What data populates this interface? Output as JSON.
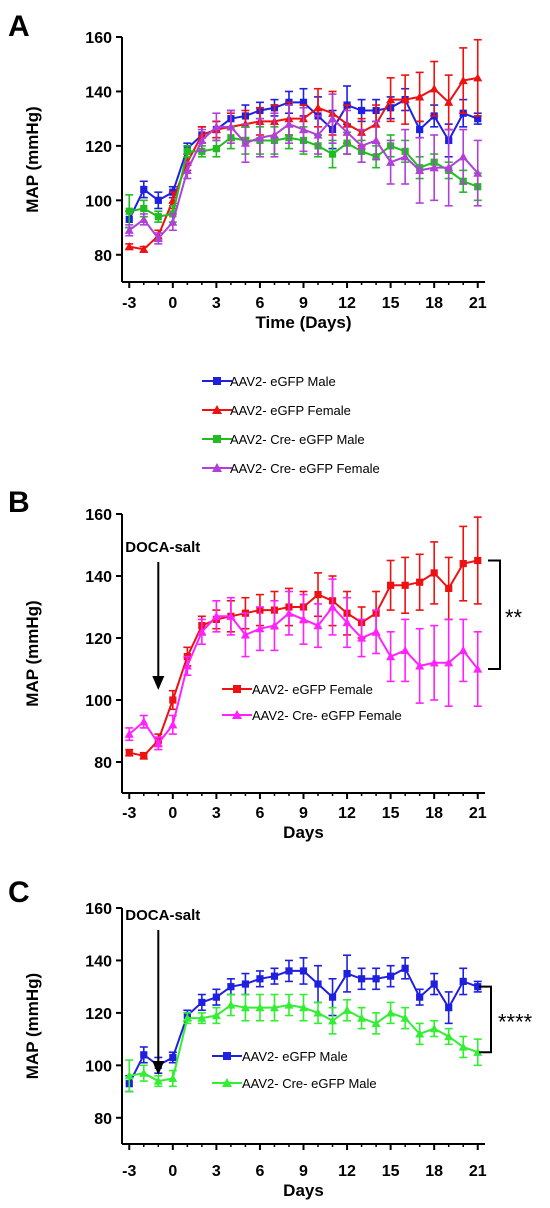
{
  "chart_data": [
    {
      "panel": "A",
      "type": "line",
      "xlabel": "Time (Days)",
      "ylabel": "MAP (mmHg)",
      "xlim": [
        -3.5,
        21.5
      ],
      "ylim": [
        70,
        160
      ],
      "xticks": [
        -3,
        0,
        3,
        6,
        9,
        12,
        15,
        18,
        21
      ],
      "yticks": [
        80,
        100,
        120,
        140,
        160
      ],
      "grid": false,
      "legend_position": "below",
      "series": [
        {
          "name": "AAV2- eGFP Male",
          "color": "#1f1fe0",
          "marker": "square",
          "x": [
            -3,
            -2,
            -1,
            0,
            1,
            2,
            3,
            4,
            5,
            6,
            7,
            8,
            9,
            10,
            11,
            12,
            13,
            14,
            15,
            16,
            17,
            18,
            19,
            20,
            21
          ],
          "y": [
            93,
            104,
            100,
            103,
            119,
            124,
            126,
            130,
            131,
            133,
            134,
            136,
            136,
            131,
            126,
            135,
            133,
            133,
            134,
            137,
            126,
            131,
            122,
            132,
            130
          ],
          "err": [
            3,
            3,
            3,
            2,
            2,
            3,
            3,
            3,
            4,
            3,
            3,
            4,
            5,
            7,
            7,
            7,
            4,
            4,
            4,
            4,
            3,
            4,
            6,
            5,
            2
          ]
        },
        {
          "name": "AAV2- eGFP Female",
          "color": "#ee1111",
          "marker": "triangle",
          "x": [
            -3,
            -2,
            -1,
            0,
            1,
            2,
            3,
            4,
            5,
            6,
            7,
            8,
            9,
            10,
            11,
            12,
            13,
            14,
            15,
            16,
            17,
            18,
            19,
            20,
            21
          ],
          "y": [
            83,
            82,
            87,
            100,
            114,
            124,
            126,
            127,
            128,
            129,
            129,
            130,
            130,
            134,
            132,
            128,
            125,
            128,
            137,
            137,
            138,
            141,
            136,
            144,
            145
          ],
          "err": [
            1,
            1,
            2,
            3,
            3,
            3,
            3,
            5,
            5,
            5,
            6,
            6,
            5,
            7,
            8,
            7,
            5,
            7,
            8,
            9,
            9,
            10,
            10,
            12,
            14
          ]
        },
        {
          "name": "AAV2- Cre- eGFP Male",
          "color": "#22bb22",
          "marker": "square",
          "x": [
            -3,
            -2,
            -1,
            0,
            1,
            2,
            3,
            4,
            5,
            6,
            7,
            8,
            9,
            10,
            11,
            12,
            13,
            14,
            15,
            16,
            17,
            18,
            19,
            20,
            21
          ],
          "y": [
            96,
            97,
            94,
            95,
            118,
            118,
            119,
            123,
            122,
            122,
            122,
            123,
            122,
            120,
            117,
            121,
            118,
            116,
            120,
            118,
            112,
            114,
            111,
            107,
            105
          ],
          "err": [
            6,
            3,
            2,
            3,
            2,
            2,
            3,
            4,
            5,
            5,
            5,
            4,
            5,
            4,
            5,
            4,
            4,
            4,
            4,
            4,
            4,
            3,
            3,
            4,
            5
          ]
        },
        {
          "name": "AAV2- Cre- eGFP Female",
          "color": "#b040d8",
          "marker": "triangle",
          "x": [
            -3,
            -2,
            -1,
            0,
            1,
            2,
            3,
            4,
            5,
            6,
            7,
            8,
            9,
            10,
            11,
            12,
            13,
            14,
            15,
            16,
            17,
            18,
            19,
            20,
            21
          ],
          "y": [
            89,
            93,
            86,
            92,
            111,
            122,
            127,
            127,
            121,
            123,
            124,
            128,
            126,
            124,
            130,
            125,
            120,
            122,
            114,
            116,
            111,
            112,
            112,
            116,
            110
          ],
          "err": [
            2,
            2,
            2,
            3,
            3,
            4,
            5,
            6,
            7,
            7,
            8,
            7,
            8,
            7,
            9,
            8,
            6,
            7,
            8,
            10,
            12,
            12,
            14,
            10,
            12
          ]
        }
      ]
    },
    {
      "panel": "B",
      "type": "line",
      "xlabel": "Days",
      "ylabel": "MAP (mmHg)",
      "xlim": [
        -3.5,
        21.5
      ],
      "ylim": [
        70,
        160
      ],
      "xticks": [
        -3,
        0,
        3,
        6,
        9,
        12,
        15,
        18,
        21
      ],
      "yticks": [
        80,
        100,
        120,
        140,
        160
      ],
      "grid": false,
      "legend_position": "bottom-center",
      "annotation": {
        "label": "DOCA-salt",
        "x": -1
      },
      "significance": "**",
      "series": [
        {
          "name": "AAV2- eGFP Female",
          "color": "#ee1111",
          "marker": "square",
          "x": [
            -3,
            -2,
            -1,
            0,
            1,
            2,
            3,
            4,
            5,
            6,
            7,
            8,
            9,
            10,
            11,
            12,
            13,
            14,
            15,
            16,
            17,
            18,
            19,
            20,
            21
          ],
          "y": [
            83,
            82,
            87,
            100,
            114,
            124,
            126,
            127,
            128,
            129,
            129,
            130,
            130,
            134,
            132,
            128,
            125,
            128,
            137,
            137,
            138,
            141,
            136,
            144,
            145
          ],
          "err": [
            1,
            1,
            2,
            3,
            3,
            3,
            3,
            5,
            5,
            5,
            6,
            6,
            5,
            7,
            8,
            7,
            5,
            7,
            8,
            9,
            9,
            10,
            10,
            12,
            14
          ]
        },
        {
          "name": "AAV2- Cre- eGFP Female",
          "color": "#ff22ff",
          "marker": "triangle",
          "x": [
            -3,
            -2,
            -1,
            0,
            1,
            2,
            3,
            4,
            5,
            6,
            7,
            8,
            9,
            10,
            11,
            12,
            13,
            14,
            15,
            16,
            17,
            18,
            19,
            20,
            21
          ],
          "y": [
            89,
            93,
            86,
            92,
            111,
            122,
            127,
            127,
            121,
            123,
            124,
            128,
            126,
            124,
            130,
            125,
            120,
            122,
            114,
            116,
            111,
            112,
            112,
            116,
            110
          ],
          "err": [
            2,
            2,
            2,
            3,
            3,
            4,
            5,
            6,
            7,
            7,
            8,
            7,
            8,
            7,
            9,
            8,
            6,
            7,
            8,
            10,
            12,
            12,
            14,
            10,
            12
          ]
        }
      ]
    },
    {
      "panel": "C",
      "type": "line",
      "xlabel": "Days",
      "ylabel": "MAP (mmHg)",
      "xlim": [
        -3.5,
        21.5
      ],
      "ylim": [
        70,
        160
      ],
      "xticks": [
        -3,
        0,
        3,
        6,
        9,
        12,
        15,
        18,
        21
      ],
      "yticks": [
        80,
        100,
        120,
        140,
        160
      ],
      "grid": false,
      "legend_position": "bottom-center",
      "annotation": {
        "label": "DOCA-salt",
        "x": -1
      },
      "significance": "****",
      "series": [
        {
          "name": "AAV2- eGFP Male",
          "color": "#1f1fe0",
          "marker": "square",
          "x": [
            -3,
            -2,
            -1,
            0,
            1,
            2,
            3,
            4,
            5,
            6,
            7,
            8,
            9,
            10,
            11,
            12,
            13,
            14,
            15,
            16,
            17,
            18,
            19,
            20,
            21
          ],
          "y": [
            93,
            104,
            100,
            103,
            119,
            124,
            126,
            130,
            131,
            133,
            134,
            136,
            136,
            131,
            126,
            135,
            133,
            133,
            134,
            137,
            126,
            131,
            122,
            132,
            130
          ],
          "err": [
            3,
            3,
            3,
            2,
            2,
            3,
            3,
            3,
            4,
            3,
            3,
            4,
            5,
            7,
            7,
            7,
            4,
            4,
            4,
            4,
            3,
            4,
            6,
            5,
            2
          ]
        },
        {
          "name": "AAV2- Cre- eGFP  Male",
          "color": "#33ee33",
          "marker": "triangle",
          "x": [
            -3,
            -2,
            -1,
            0,
            1,
            2,
            3,
            4,
            5,
            6,
            7,
            8,
            9,
            10,
            11,
            12,
            13,
            14,
            15,
            16,
            17,
            18,
            19,
            20,
            21
          ],
          "y": [
            96,
            97,
            94,
            95,
            118,
            118,
            119,
            123,
            122,
            122,
            122,
            123,
            122,
            120,
            117,
            121,
            118,
            116,
            120,
            118,
            112,
            114,
            111,
            107,
            105
          ],
          "err": [
            6,
            3,
            2,
            3,
            2,
            2,
            3,
            4,
            5,
            5,
            5,
            4,
            5,
            4,
            5,
            4,
            4,
            4,
            4,
            4,
            4,
            3,
            3,
            4,
            5
          ]
        }
      ]
    }
  ]
}
